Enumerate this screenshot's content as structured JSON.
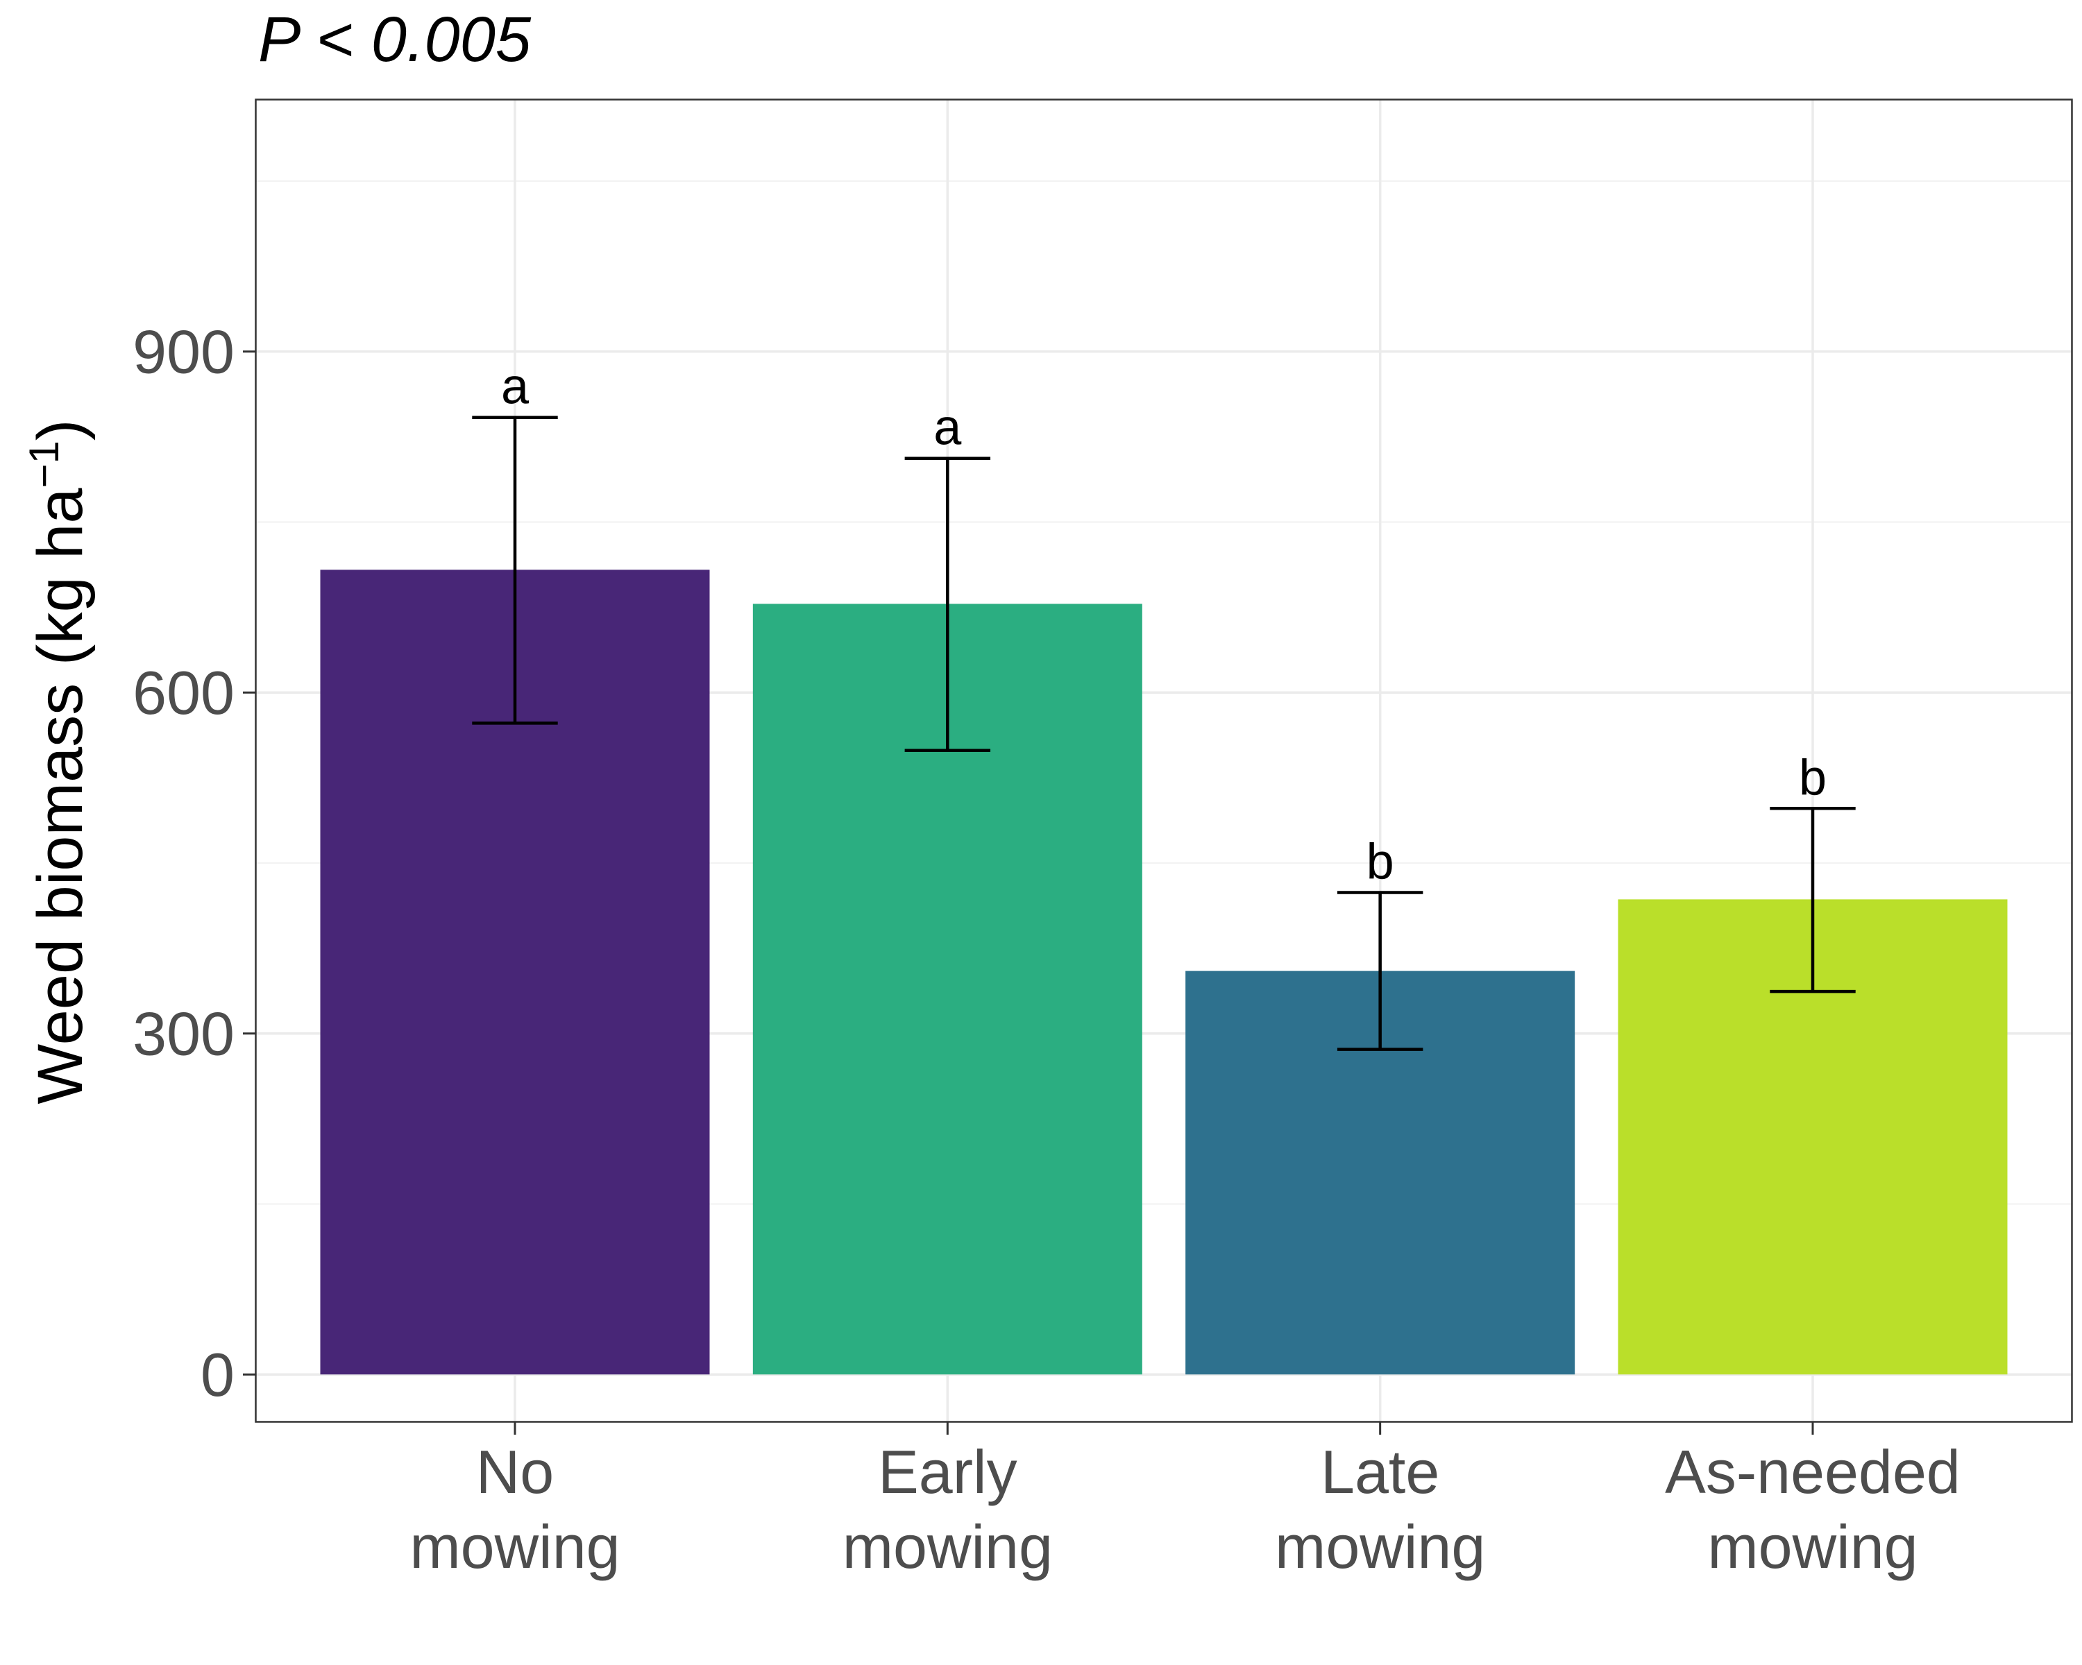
{
  "chart_data": {
    "type": "bar",
    "title": "P < 0.005",
    "ylabel": "Weed biomass (kg ha",
    "ylabel_sup": "−1",
    "ylabel_close": ")",
    "categories": [
      [
        "No",
        "mowing"
      ],
      [
        "Early",
        "mowing"
      ],
      [
        "Late",
        "mowing"
      ],
      [
        "As-needed",
        "mowing"
      ]
    ],
    "values": [
      708,
      678,
      355,
      418
    ],
    "error_low": [
      573,
      549,
      286,
      337
    ],
    "error_high": [
      842,
      806,
      424,
      498
    ],
    "letters": [
      "a",
      "a",
      "b",
      "b"
    ],
    "colors": [
      "#482677",
      "#2BAE81",
      "#2E718E",
      "#BADF2A"
    ],
    "yticks": [
      0,
      300,
      600,
      900
    ],
    "ylim": [
      -42,
      1122
    ],
    "grid": true,
    "legend": "none"
  }
}
